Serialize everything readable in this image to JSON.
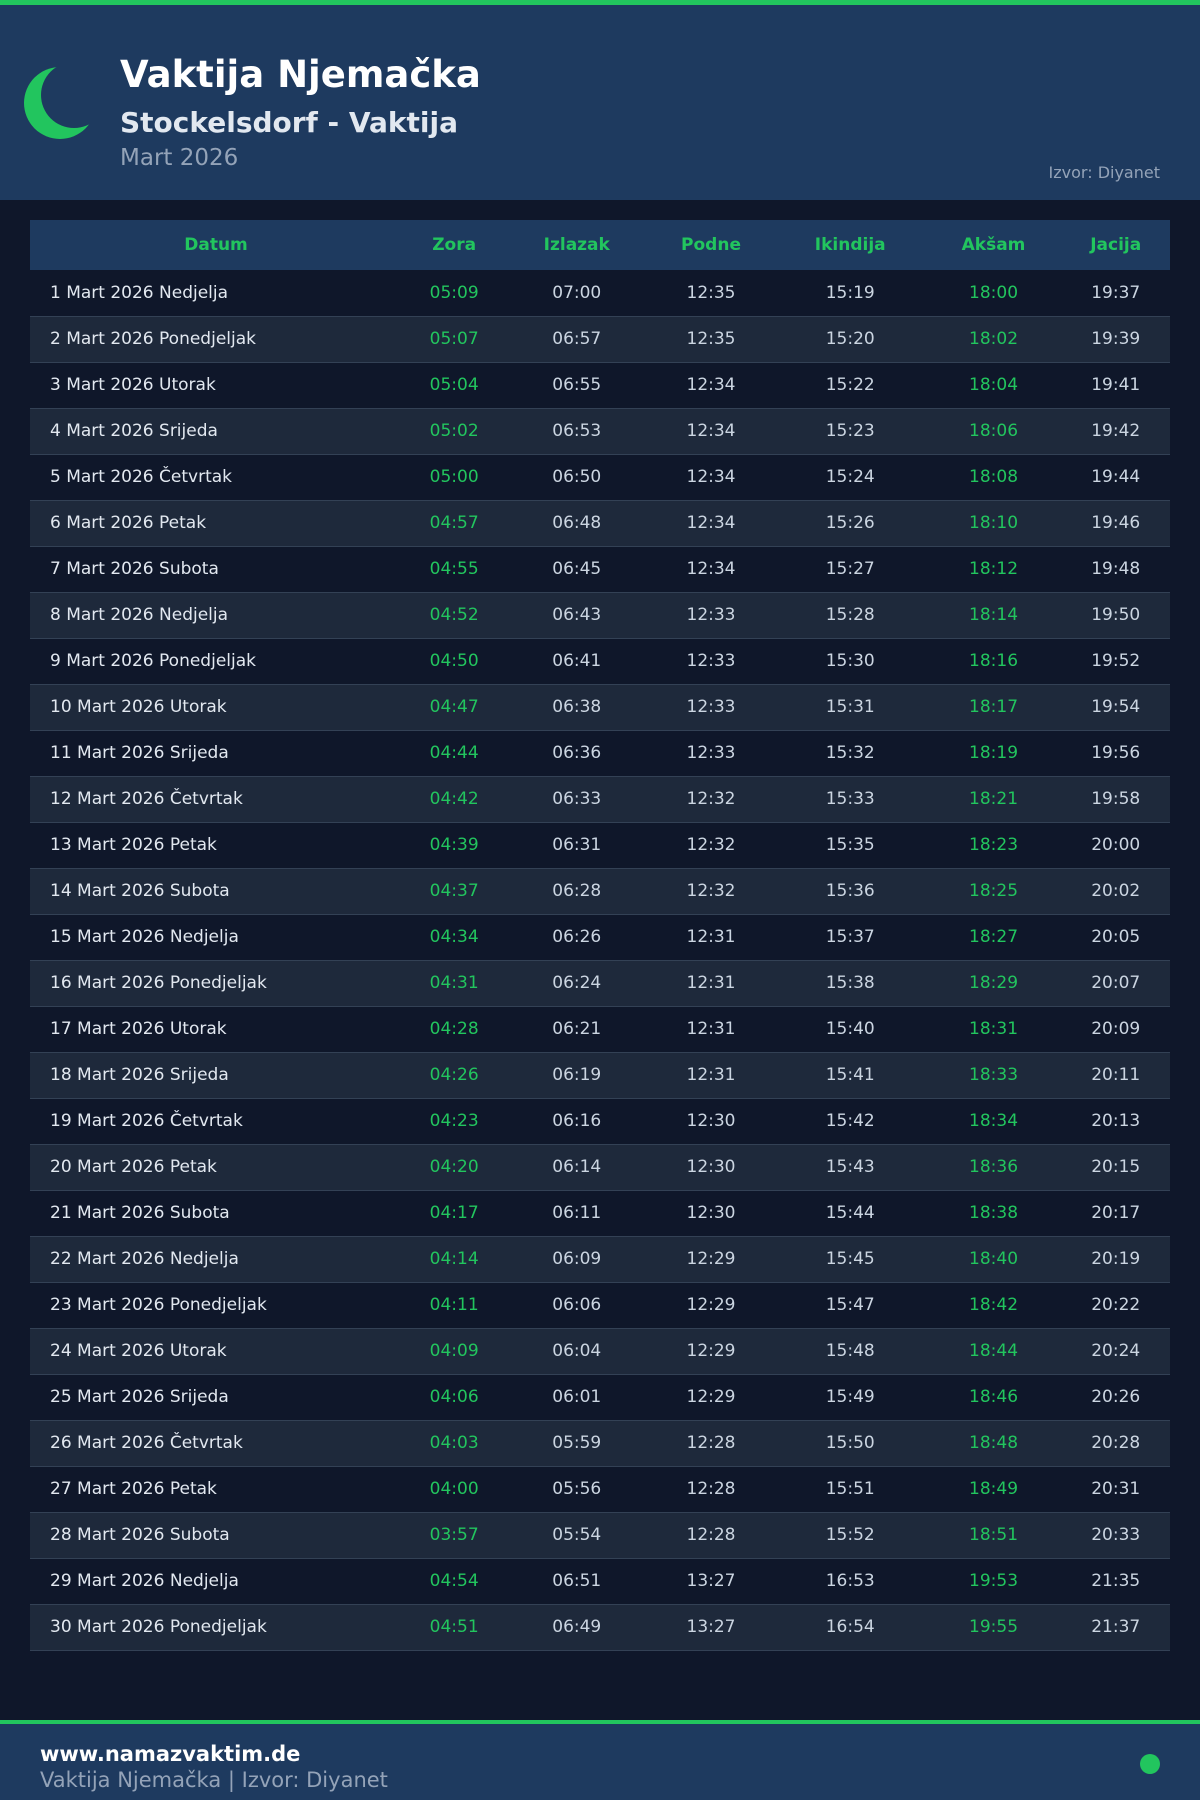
{
  "header": {
    "title": "Vaktija Njemačka",
    "subtitle": "Stockelsdorf - Vaktija",
    "month": "Mart 2026",
    "source": "Izvor: Diyanet",
    "icon": "crescent-moon-icon"
  },
  "colors": {
    "accent": "#22c55e",
    "header_bg": "#1e3a5f",
    "page_bg": "#0f172a"
  },
  "table": {
    "columns": [
      "Datum",
      "Zora",
      "Izlazak",
      "Podne",
      "Ikindija",
      "Akšam",
      "Jacija"
    ],
    "rows": [
      [
        "1 Mart 2026 Nedjelja",
        "05:09",
        "07:00",
        "12:35",
        "15:19",
        "18:00",
        "19:37"
      ],
      [
        "2 Mart 2026 Ponedjeljak",
        "05:07",
        "06:57",
        "12:35",
        "15:20",
        "18:02",
        "19:39"
      ],
      [
        "3 Mart 2026 Utorak",
        "05:04",
        "06:55",
        "12:34",
        "15:22",
        "18:04",
        "19:41"
      ],
      [
        "4 Mart 2026 Srijeda",
        "05:02",
        "06:53",
        "12:34",
        "15:23",
        "18:06",
        "19:42"
      ],
      [
        "5 Mart 2026 Četvrtak",
        "05:00",
        "06:50",
        "12:34",
        "15:24",
        "18:08",
        "19:44"
      ],
      [
        "6 Mart 2026 Petak",
        "04:57",
        "06:48",
        "12:34",
        "15:26",
        "18:10",
        "19:46"
      ],
      [
        "7 Mart 2026 Subota",
        "04:55",
        "06:45",
        "12:34",
        "15:27",
        "18:12",
        "19:48"
      ],
      [
        "8 Mart 2026 Nedjelja",
        "04:52",
        "06:43",
        "12:33",
        "15:28",
        "18:14",
        "19:50"
      ],
      [
        "9 Mart 2026 Ponedjeljak",
        "04:50",
        "06:41",
        "12:33",
        "15:30",
        "18:16",
        "19:52"
      ],
      [
        "10 Mart 2026 Utorak",
        "04:47",
        "06:38",
        "12:33",
        "15:31",
        "18:17",
        "19:54"
      ],
      [
        "11 Mart 2026 Srijeda",
        "04:44",
        "06:36",
        "12:33",
        "15:32",
        "18:19",
        "19:56"
      ],
      [
        "12 Mart 2026 Četvrtak",
        "04:42",
        "06:33",
        "12:32",
        "15:33",
        "18:21",
        "19:58"
      ],
      [
        "13 Mart 2026 Petak",
        "04:39",
        "06:31",
        "12:32",
        "15:35",
        "18:23",
        "20:00"
      ],
      [
        "14 Mart 2026 Subota",
        "04:37",
        "06:28",
        "12:32",
        "15:36",
        "18:25",
        "20:02"
      ],
      [
        "15 Mart 2026 Nedjelja",
        "04:34",
        "06:26",
        "12:31",
        "15:37",
        "18:27",
        "20:05"
      ],
      [
        "16 Mart 2026 Ponedjeljak",
        "04:31",
        "06:24",
        "12:31",
        "15:38",
        "18:29",
        "20:07"
      ],
      [
        "17 Mart 2026 Utorak",
        "04:28",
        "06:21",
        "12:31",
        "15:40",
        "18:31",
        "20:09"
      ],
      [
        "18 Mart 2026 Srijeda",
        "04:26",
        "06:19",
        "12:31",
        "15:41",
        "18:33",
        "20:11"
      ],
      [
        "19 Mart 2026 Četvrtak",
        "04:23",
        "06:16",
        "12:30",
        "15:42",
        "18:34",
        "20:13"
      ],
      [
        "20 Mart 2026 Petak",
        "04:20",
        "06:14",
        "12:30",
        "15:43",
        "18:36",
        "20:15"
      ],
      [
        "21 Mart 2026 Subota",
        "04:17",
        "06:11",
        "12:30",
        "15:44",
        "18:38",
        "20:17"
      ],
      [
        "22 Mart 2026 Nedjelja",
        "04:14",
        "06:09",
        "12:29",
        "15:45",
        "18:40",
        "20:19"
      ],
      [
        "23 Mart 2026 Ponedjeljak",
        "04:11",
        "06:06",
        "12:29",
        "15:47",
        "18:42",
        "20:22"
      ],
      [
        "24 Mart 2026 Utorak",
        "04:09",
        "06:04",
        "12:29",
        "15:48",
        "18:44",
        "20:24"
      ],
      [
        "25 Mart 2026 Srijeda",
        "04:06",
        "06:01",
        "12:29",
        "15:49",
        "18:46",
        "20:26"
      ],
      [
        "26 Mart 2026 Četvrtak",
        "04:03",
        "05:59",
        "12:28",
        "15:50",
        "18:48",
        "20:28"
      ],
      [
        "27 Mart 2026 Petak",
        "04:00",
        "05:56",
        "12:28",
        "15:51",
        "18:49",
        "20:31"
      ],
      [
        "28 Mart 2026 Subota",
        "03:57",
        "05:54",
        "12:28",
        "15:52",
        "18:51",
        "20:33"
      ],
      [
        "29 Mart 2026 Nedjelja",
        "04:54",
        "06:51",
        "13:27",
        "16:53",
        "19:53",
        "21:35"
      ],
      [
        "30 Mart 2026 Ponedjeljak",
        "04:51",
        "06:49",
        "13:27",
        "16:54",
        "19:55",
        "21:37"
      ]
    ]
  },
  "footer": {
    "site": "www.namazvaktim.de",
    "subtitle": "Vaktija Njemačka | Izvor: Diyanet"
  }
}
